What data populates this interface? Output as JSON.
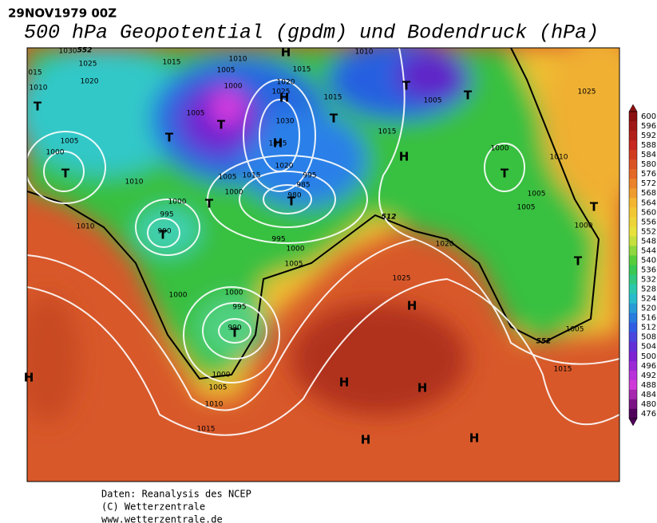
{
  "header": {
    "date": "29NOV1979 00Z",
    "title": "500 hPa Geopotential (gpdm) und Bodendruck (hPa)"
  },
  "colorbar": {
    "labels": [
      "600",
      "596",
      "592",
      "588",
      "584",
      "580",
      "576",
      "572",
      "568",
      "564",
      "560",
      "556",
      "552",
      "548",
      "544",
      "540",
      "536",
      "532",
      "528",
      "524",
      "520",
      "516",
      "512",
      "508",
      "504",
      "500",
      "496",
      "492",
      "488",
      "484",
      "480",
      "476"
    ]
  },
  "map": {
    "isobar_labels": [
      "1025",
      "1020",
      "1015",
      "1010",
      "1005",
      "1000",
      "1005",
      "1020",
      "1025",
      "1015",
      "1015",
      "1030",
      "1035",
      "1020",
      "1015",
      "1005",
      "1000",
      "995",
      "985",
      "980",
      "1000",
      "995",
      "990",
      "995",
      "1000",
      "1005",
      "1010",
      "1010",
      "1005",
      "1000",
      "1010",
      "1015",
      "1010",
      "1005",
      "1025",
      "1000",
      "1010",
      "1005",
      "1005",
      "1000",
      "1020",
      "1025",
      "1000",
      "1000",
      "995",
      "990",
      "1000",
      "1005",
      "1010",
      "1015",
      "1005",
      "1015",
      "1030",
      "015"
    ],
    "contour_labels": [
      "552",
      "512",
      "552"
    ],
    "centers": [
      "H",
      "T",
      "T",
      "T",
      "H",
      "T",
      "H",
      "T",
      "T",
      "T",
      "T",
      "H",
      "T",
      "T",
      "T",
      "T",
      "T",
      "H",
      "T",
      "H",
      "H",
      "H",
      "H",
      "H"
    ]
  },
  "footer": {
    "lines": [
      "Daten: Reanalysis des NCEP",
      "(C) Wetterzentrale",
      "www.wetterzentrale.de"
    ]
  }
}
